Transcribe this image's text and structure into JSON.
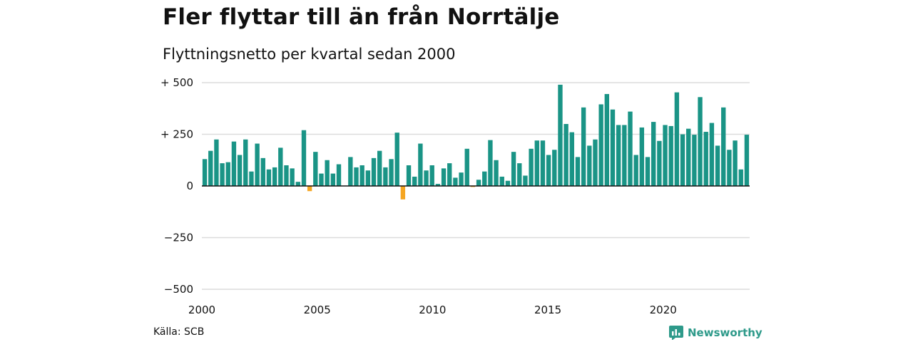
{
  "title": "Fler flyttar till än från Norrtälje",
  "subtitle": "Flyttningsnetto per kvartal sedan 2000",
  "source": "Källa: SCB",
  "brand": {
    "name": "Newsworthy",
    "icon": "newsworthy-logo-icon",
    "color": "#2e9a8a"
  },
  "chart_data": {
    "type": "bar",
    "title": "Fler flyttar till än från Norrtälje",
    "subtitle": "Flyttningsnetto per kvartal sedan 2000",
    "x_start_year": 2000,
    "quarters_per_year": 4,
    "xlim": [
      2000,
      2023.75
    ],
    "ylim": [
      -500,
      500
    ],
    "y_ticks": [
      500,
      250,
      0,
      -250,
      -500
    ],
    "y_tick_labels": [
      "+ 500",
      "+ 250",
      "0",
      "−250",
      "−500"
    ],
    "x_ticks": [
      2000,
      2005,
      2010,
      2015,
      2020
    ],
    "x_tick_labels": [
      "2000",
      "2005",
      "2010",
      "2015",
      "2020"
    ],
    "grid": true,
    "positive_color": "#1a9486",
    "negative_color": "#f5a623",
    "values": [
      130,
      170,
      225,
      110,
      115,
      215,
      150,
      225,
      70,
      205,
      135,
      80,
      90,
      185,
      100,
      85,
      20,
      270,
      -25,
      165,
      60,
      125,
      60,
      105,
      0,
      140,
      90,
      100,
      75,
      135,
      170,
      90,
      130,
      258,
      -65,
      100,
      45,
      205,
      75,
      100,
      10,
      85,
      110,
      40,
      65,
      180,
      -5,
      30,
      70,
      222,
      125,
      45,
      25,
      165,
      110,
      50,
      180,
      220,
      220,
      150,
      175,
      490,
      300,
      260,
      140,
      380,
      195,
      225,
      395,
      445,
      370,
      295,
      295,
      360,
      150,
      283,
      140,
      310,
      218,
      295,
      290,
      453,
      250,
      277,
      248,
      430,
      262,
      305,
      195,
      380,
      175,
      220,
      80,
      248
    ]
  }
}
